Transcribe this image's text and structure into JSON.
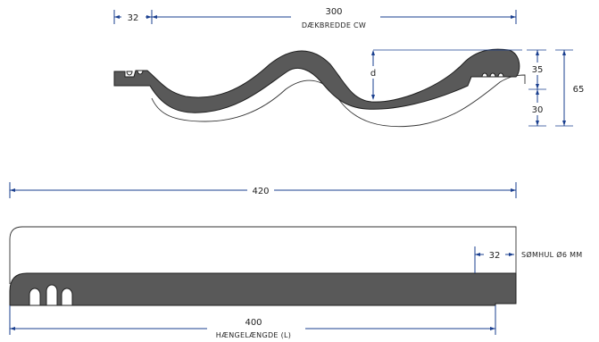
{
  "top_view": {
    "dim_32": "32",
    "width_value": "300",
    "width_label": "DÆKBREDDE CW",
    "d_label": "d",
    "height_35": "35",
    "height_30": "30",
    "height_65": "65"
  },
  "bottom_view": {
    "total_length": "420",
    "hanging_value": "400",
    "hanging_label": "HÆNGELÆNGDE (L)",
    "dim_32": "32",
    "nail_hole": "SØMHUL Ø6 MM"
  },
  "colors": {
    "dimension": "#1a3f8f",
    "profile": "#595959"
  }
}
